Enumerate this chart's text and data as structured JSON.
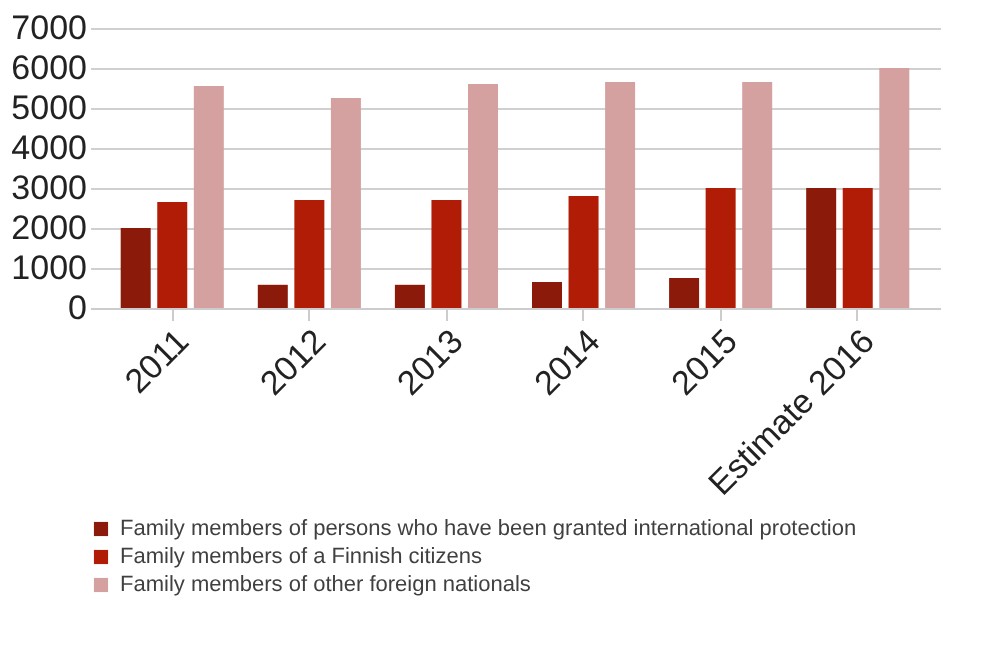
{
  "chart_data": {
    "type": "bar",
    "categories": [
      "2011",
      "2012",
      "2013",
      "2014",
      "2015",
      "Estimate 2016"
    ],
    "series": [
      {
        "name": "Family members of persons who have been granted international protection",
        "color": "#8b1a0a",
        "values": [
          2000,
          580,
          580,
          650,
          750,
          3000
        ]
      },
      {
        "name": "Family members of a Finnish citizens",
        "color": "#b01c06",
        "values": [
          2650,
          2700,
          2700,
          2800,
          3000,
          3000
        ]
      },
      {
        "name": "Family members of other foreign nationals",
        "color": "#d4a0a0",
        "values": [
          5550,
          5250,
          5600,
          5650,
          5650,
          6000
        ]
      }
    ],
    "ylim": [
      0,
      7000
    ],
    "yticks": [
      0,
      1000,
      2000,
      3000,
      4000,
      5000,
      6000,
      7000
    ],
    "grid": "y",
    "legend": "bottom"
  }
}
